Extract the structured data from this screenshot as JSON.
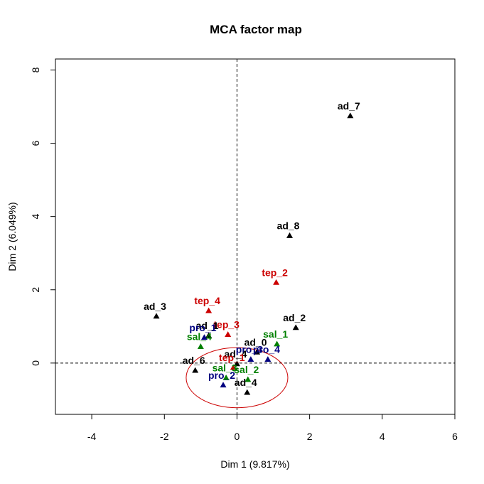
{
  "chart_data": {
    "type": "scatter",
    "title": "MCA factor map",
    "xlabel": "Dim 1 (9.817%)",
    "ylabel": "Dim 2 (6.049%)",
    "xlim": [
      -5,
      6
    ],
    "ylim": [
      -1.4,
      8.3
    ],
    "xticks": [
      -4,
      -2,
      0,
      2,
      4,
      6
    ],
    "yticks": [
      0,
      2,
      4,
      6,
      8
    ],
    "grid": false,
    "reference_lines": {
      "x": 0,
      "y": 0,
      "style": "dashed"
    },
    "ellipse": {
      "cx": 0.0,
      "cy": -0.4,
      "rx": 1.4,
      "ry": 0.82,
      "color": "#cc0000"
    },
    "series_colors": {
      "ad": "#000000",
      "tep": "#cc0000",
      "pro": "#000080",
      "sal": "#008000"
    },
    "points": [
      {
        "label": "ad_7",
        "group": "ad",
        "x": 3.12,
        "y": 6.75
      },
      {
        "label": "ad_8",
        "group": "ad",
        "x": 1.45,
        "y": 3.48
      },
      {
        "label": "tep_2",
        "group": "tep",
        "x": 1.08,
        "y": 2.2
      },
      {
        "label": "ad_3",
        "group": "ad",
        "x": -2.22,
        "y": 1.28
      },
      {
        "label": "tep_4",
        "group": "tep",
        "x": -0.78,
        "y": 1.43
      },
      {
        "label": "ad_2",
        "group": "ad",
        "x": 1.62,
        "y": 0.97
      },
      {
        "label": "tep_3",
        "group": "tep",
        "x": -0.25,
        "y": 0.78
      },
      {
        "label": "ad_1",
        "group": "ad",
        "x": -0.78,
        "y": 0.75
      },
      {
        "label": "pro_1",
        "group": "pro",
        "x": -0.9,
        "y": 0.7
      },
      {
        "label": "sal_4",
        "group": "sal",
        "x": -1.0,
        "y": 0.45
      },
      {
        "label": "sal_1",
        "group": "sal",
        "x": 1.1,
        "y": 0.52
      },
      {
        "label": "ad_0",
        "group": "ad",
        "x": 0.55,
        "y": 0.3
      },
      {
        "label": "pro_4",
        "group": "pro",
        "x": 0.85,
        "y": 0.1
      },
      {
        "label": "pro_3",
        "group": "pro",
        "x": 0.38,
        "y": 0.1
      },
      {
        "label": "ad_6",
        "group": "ad",
        "x": -1.15,
        "y": -0.2
      },
      {
        "label": "ad_4",
        "group": "ad",
        "x": 0.0,
        "y": -0.02
      },
      {
        "label": "tep_1",
        "group": "tep",
        "x": -0.1,
        "y": -0.12
      },
      {
        "label": "sal_3",
        "group": "sal",
        "x": -0.3,
        "y": -0.4
      },
      {
        "label": "sal_2",
        "group": "sal",
        "x": 0.3,
        "y": -0.45
      },
      {
        "label": "pro_2",
        "group": "pro",
        "x": -0.38,
        "y": -0.6
      },
      {
        "label": "ad_4",
        "group": "ad",
        "x": 0.28,
        "y": -0.8
      }
    ]
  }
}
